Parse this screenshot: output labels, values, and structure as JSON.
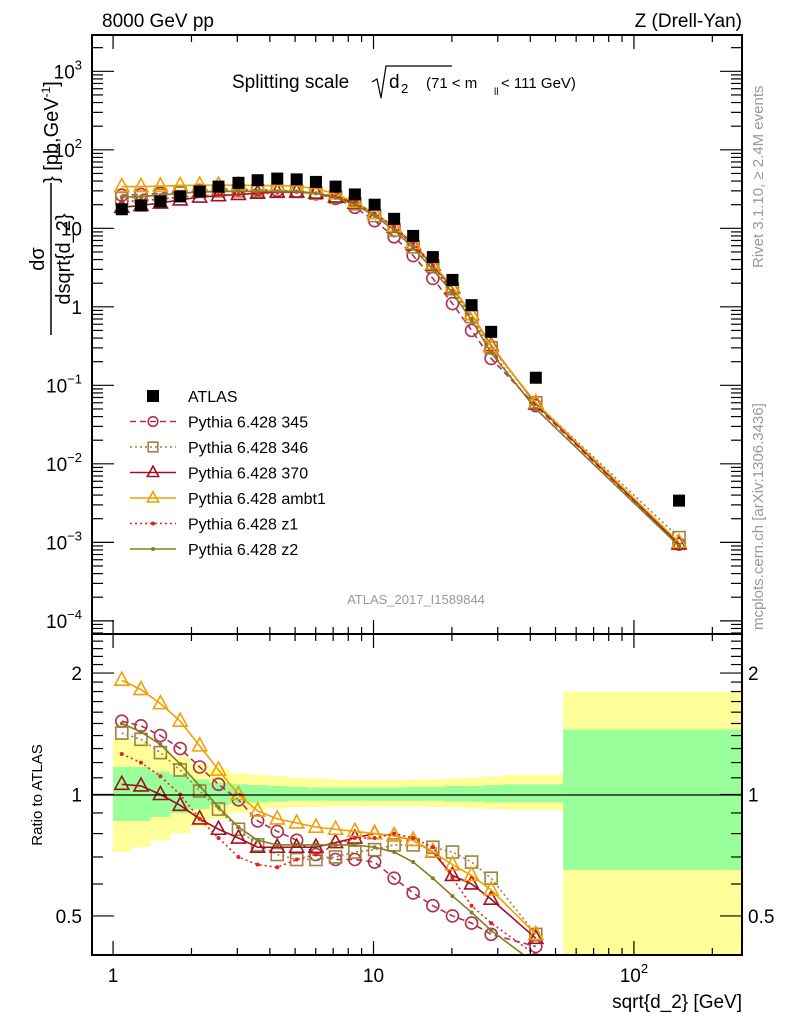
{
  "header": {
    "left_title": "8000 GeV pp",
    "right_title": "Z (Drell-Yan)"
  },
  "side_labels": {
    "rivet": "Rivet 3.1.10, ≥ 2.4M events",
    "mcplots": "mcplots.cern.ch [arXiv:1306.3436]"
  },
  "chart_data": [
    {
      "type": "scatter",
      "title": "Splitting scale √d₂ (71 < m_ll < 111 GeV)",
      "title_main": "Splitting scale",
      "title_sqrt": "d",
      "title_sub": "2",
      "title_range_pre": "(71 < m",
      "title_range_sub": "ll",
      "title_range_post": " < 111 GeV)",
      "analysis_label": "ATLAS_2017_I1589844",
      "ylabel": "dσ/dsqrt{d_2} [pb,GeV⁻¹]",
      "ylabel_num": "dσ",
      "ylabel_den": "dsqrt{d_2}",
      "ylabel_units": "} [pb,GeV",
      "ylabel_units_sup": "-1",
      "ylabel_units_end": "]",
      "xscale": "log",
      "yscale": "log",
      "xlim": [
        0.83,
        260
      ],
      "ylim": [
        6.8e-05,
        2900
      ],
      "yticks": [
        {
          "value": 1000,
          "label": "10",
          "sup": "3"
        },
        {
          "value": 100,
          "label": "10",
          "sup": "2"
        },
        {
          "value": 10,
          "label": "10",
          "sup": ""
        },
        {
          "value": 1,
          "label": "1",
          "sup": ""
        },
        {
          "value": 0.1,
          "label": "10",
          "sup": "−1"
        },
        {
          "value": 0.01,
          "label": "10",
          "sup": "−2"
        },
        {
          "value": 0.001,
          "label": "10",
          "sup": "−3"
        },
        {
          "value": 0.0001,
          "label": "10",
          "sup": "−4"
        }
      ],
      "x": [
        1.08,
        1.28,
        1.52,
        1.81,
        2.15,
        2.54,
        3.03,
        3.59,
        4.27,
        5.07,
        6.01,
        7.15,
        8.48,
        10.1,
        12.0,
        14.2,
        16.9,
        20.1,
        23.8,
        28.3,
        42.0,
        149
      ],
      "legend_position": "left-middle",
      "series": [
        {
          "name": "ATLAS",
          "marker": "square-filled",
          "color": "#000000",
          "line": "none",
          "values": [
            17.5,
            19.5,
            22,
            25.5,
            29.5,
            34,
            38,
            41,
            43,
            42,
            39,
            34,
            27,
            20,
            13.2,
            8.0,
            4.3,
            2.2,
            1.05,
            0.48,
            0.125,
            0.0034
          ]
        },
        {
          "name": "Pythia 6.428 345",
          "marker": "circle-open",
          "color": "#b03050",
          "line": "dashed",
          "values": [
            26.5,
            27,
            28,
            29.5,
            30.5,
            31.5,
            31.5,
            31,
            30.5,
            29.5,
            27.5,
            24,
            18.5,
            12.5,
            7.8,
            4.5,
            2.3,
            1.1,
            0.5,
            0.22,
            0.055,
            0.00095
          ]
        },
        {
          "name": "Pythia 6.428 346",
          "marker": "square-open",
          "color": "#a08040",
          "line": "dotted",
          "values": [
            24,
            25,
            26.5,
            28,
            29.5,
            30,
            30,
            30,
            29.5,
            29.5,
            28,
            25,
            20.5,
            14.5,
            9.5,
            5.8,
            3.3,
            1.7,
            0.75,
            0.3,
            0.06,
            0.00115
          ]
        },
        {
          "name": "Pythia 6.428 370",
          "marker": "triangle-open",
          "color": "#a01020",
          "line": "solid",
          "values": [
            18.5,
            19.5,
            21,
            23,
            25,
            26,
            27,
            28,
            29,
            29,
            28,
            25,
            21,
            15.5,
            10.3,
            6.2,
            3.4,
            1.75,
            0.8,
            0.32,
            0.058,
            0.00095
          ]
        },
        {
          "name": "Pythia 6.428 ambt1",
          "marker": "triangle-open",
          "color": "#f0a000",
          "line": "solid",
          "values": [
            34,
            34,
            34.5,
            35,
            35.5,
            35.5,
            35.5,
            35,
            35,
            34.5,
            32,
            27.5,
            21.5,
            15.5,
            10.5,
            6.4,
            3.5,
            1.8,
            0.8,
            0.31,
            0.06,
            0.001
          ]
        },
        {
          "name": "Pythia 6.428 z1",
          "marker": "dot",
          "color": "#e82020",
          "line": "dotted",
          "values": [
            22,
            22.5,
            23.5,
            25,
            26,
            26.5,
            27,
            27.5,
            28.5,
            29,
            28,
            25.5,
            21,
            15.5,
            10.5,
            6.5,
            3.4,
            1.55,
            0.7,
            0.27,
            0.05,
            0.0009
          ]
        },
        {
          "name": "Pythia 6.428 z2",
          "marker": "dot",
          "color": "#808020",
          "line": "solid",
          "values": [
            25,
            25.5,
            26.5,
            28,
            29,
            29.5,
            29.5,
            29.5,
            29.5,
            29.5,
            28,
            24.5,
            20,
            14.5,
            9.5,
            5.6,
            3.0,
            1.5,
            0.68,
            0.26,
            0.05,
            0.0009
          ]
        }
      ]
    },
    {
      "type": "line",
      "ylabel": "Ratio to ATLAS",
      "xlabel": "sqrt{d_2} [GeV]",
      "xscale": "log",
      "yscale": "log",
      "xlim": [
        0.83,
        260
      ],
      "ylim": [
        0.4,
        2.5
      ],
      "xticks": [
        {
          "value": 1,
          "label": "1",
          "sup": ""
        },
        {
          "value": 10,
          "label": "10",
          "sup": ""
        },
        {
          "value": 100,
          "label": "10",
          "sup": "2"
        }
      ],
      "yticks": [
        {
          "value": 2,
          "label": "2"
        },
        {
          "value": 1,
          "label": "1"
        },
        {
          "value": 0.5,
          "label": "0.5"
        }
      ],
      "bands": {
        "edges": [
          1.0,
          1.17,
          1.39,
          1.65,
          1.97,
          2.34,
          2.78,
          3.31,
          3.94,
          4.68,
          5.57,
          6.62,
          7.88,
          9.37,
          11.1,
          13.3,
          15.8,
          18.8,
          22.3,
          26.5,
          31.6,
          53.5,
          260
        ],
        "stat_low": [
          0.86,
          0.86,
          0.88,
          0.9,
          0.92,
          0.94,
          0.95,
          0.955,
          0.96,
          0.965,
          0.965,
          0.965,
          0.965,
          0.965,
          0.965,
          0.965,
          0.965,
          0.96,
          0.96,
          0.955,
          0.955,
          0.65
        ],
        "stat_high": [
          1.17,
          1.17,
          1.14,
          1.12,
          1.09,
          1.07,
          1.06,
          1.055,
          1.05,
          1.045,
          1.04,
          1.04,
          1.04,
          1.04,
          1.04,
          1.045,
          1.045,
          1.05,
          1.05,
          1.055,
          1.06,
          1.45
        ],
        "total_low": [
          0.72,
          0.74,
          0.77,
          0.8,
          0.83,
          0.87,
          0.9,
          0.92,
          0.925,
          0.93,
          0.93,
          0.935,
          0.935,
          0.935,
          0.935,
          0.935,
          0.93,
          0.93,
          0.925,
          0.92,
          0.915,
          0.4
        ],
        "total_high": [
          1.38,
          1.35,
          1.29,
          1.24,
          1.19,
          1.16,
          1.13,
          1.12,
          1.11,
          1.1,
          1.095,
          1.09,
          1.085,
          1.085,
          1.085,
          1.09,
          1.09,
          1.095,
          1.1,
          1.11,
          1.12,
          1.8
        ],
        "stat_color": "#99ff99",
        "total_color": "#ffff99"
      },
      "x": [
        1.08,
        1.28,
        1.52,
        1.81,
        2.15,
        2.54,
        3.03,
        3.59,
        4.27,
        5.07,
        6.01,
        7.15,
        8.48,
        10.1,
        12.0,
        14.2,
        16.9,
        20.1,
        23.8,
        28.3,
        42.0
      ],
      "series": [
        {
          "name": "Pythia 6.428 345",
          "marker": "circle-open",
          "color": "#b03050",
          "line": "dashed",
          "values": [
            1.52,
            1.48,
            1.4,
            1.3,
            1.17,
            1.06,
            0.97,
            0.86,
            0.81,
            0.77,
            0.71,
            0.69,
            0.69,
            0.68,
            0.62,
            0.57,
            0.53,
            0.5,
            0.48,
            0.45,
            0.42
          ]
        },
        {
          "name": "Pythia 6.428 346",
          "marker": "square-open",
          "color": "#a08040",
          "line": "dotted",
          "values": [
            1.42,
            1.37,
            1.27,
            1.15,
            1.02,
            0.92,
            0.82,
            0.75,
            0.71,
            0.69,
            0.69,
            0.7,
            0.72,
            0.73,
            0.75,
            0.75,
            0.74,
            0.72,
            0.68,
            0.62,
            0.45
          ]
        },
        {
          "name": "Pythia 6.428 370",
          "marker": "triangle-open",
          "color": "#a01020",
          "line": "solid",
          "values": [
            1.06,
            1.05,
            1.0,
            0.94,
            0.87,
            0.82,
            0.78,
            0.74,
            0.74,
            0.74,
            0.74,
            0.76,
            0.78,
            0.8,
            0.79,
            0.77,
            0.72,
            0.63,
            0.6,
            0.55,
            0.44
          ]
        },
        {
          "name": "Pythia 6.428 ambt1",
          "marker": "triangle-open",
          "color": "#f0a000",
          "line": "solid",
          "values": [
            1.92,
            1.82,
            1.68,
            1.52,
            1.32,
            1.15,
            1.0,
            0.91,
            0.87,
            0.85,
            0.83,
            0.82,
            0.81,
            0.8,
            0.79,
            0.77,
            0.72,
            0.67,
            0.63,
            0.58,
            0.45
          ]
        },
        {
          "name": "Pythia 6.428 z1",
          "marker": "dot",
          "color": "#e82020",
          "line": "dotted",
          "values": [
            1.26,
            1.2,
            1.11,
            1.0,
            0.87,
            0.78,
            0.7,
            0.67,
            0.66,
            0.69,
            0.71,
            0.75,
            0.78,
            0.78,
            0.8,
            0.78,
            0.74,
            0.62,
            0.53,
            0.48,
            0.4
          ]
        },
        {
          "name": "Pythia 6.428 z2",
          "marker": "dot",
          "color": "#808020",
          "line": "solid",
          "values": [
            1.5,
            1.43,
            1.33,
            1.19,
            1.05,
            0.93,
            0.83,
            0.77,
            0.75,
            0.75,
            0.75,
            0.75,
            0.75,
            0.74,
            0.72,
            0.68,
            0.62,
            0.56,
            0.51,
            0.46,
            0.38
          ]
        }
      ]
    }
  ]
}
